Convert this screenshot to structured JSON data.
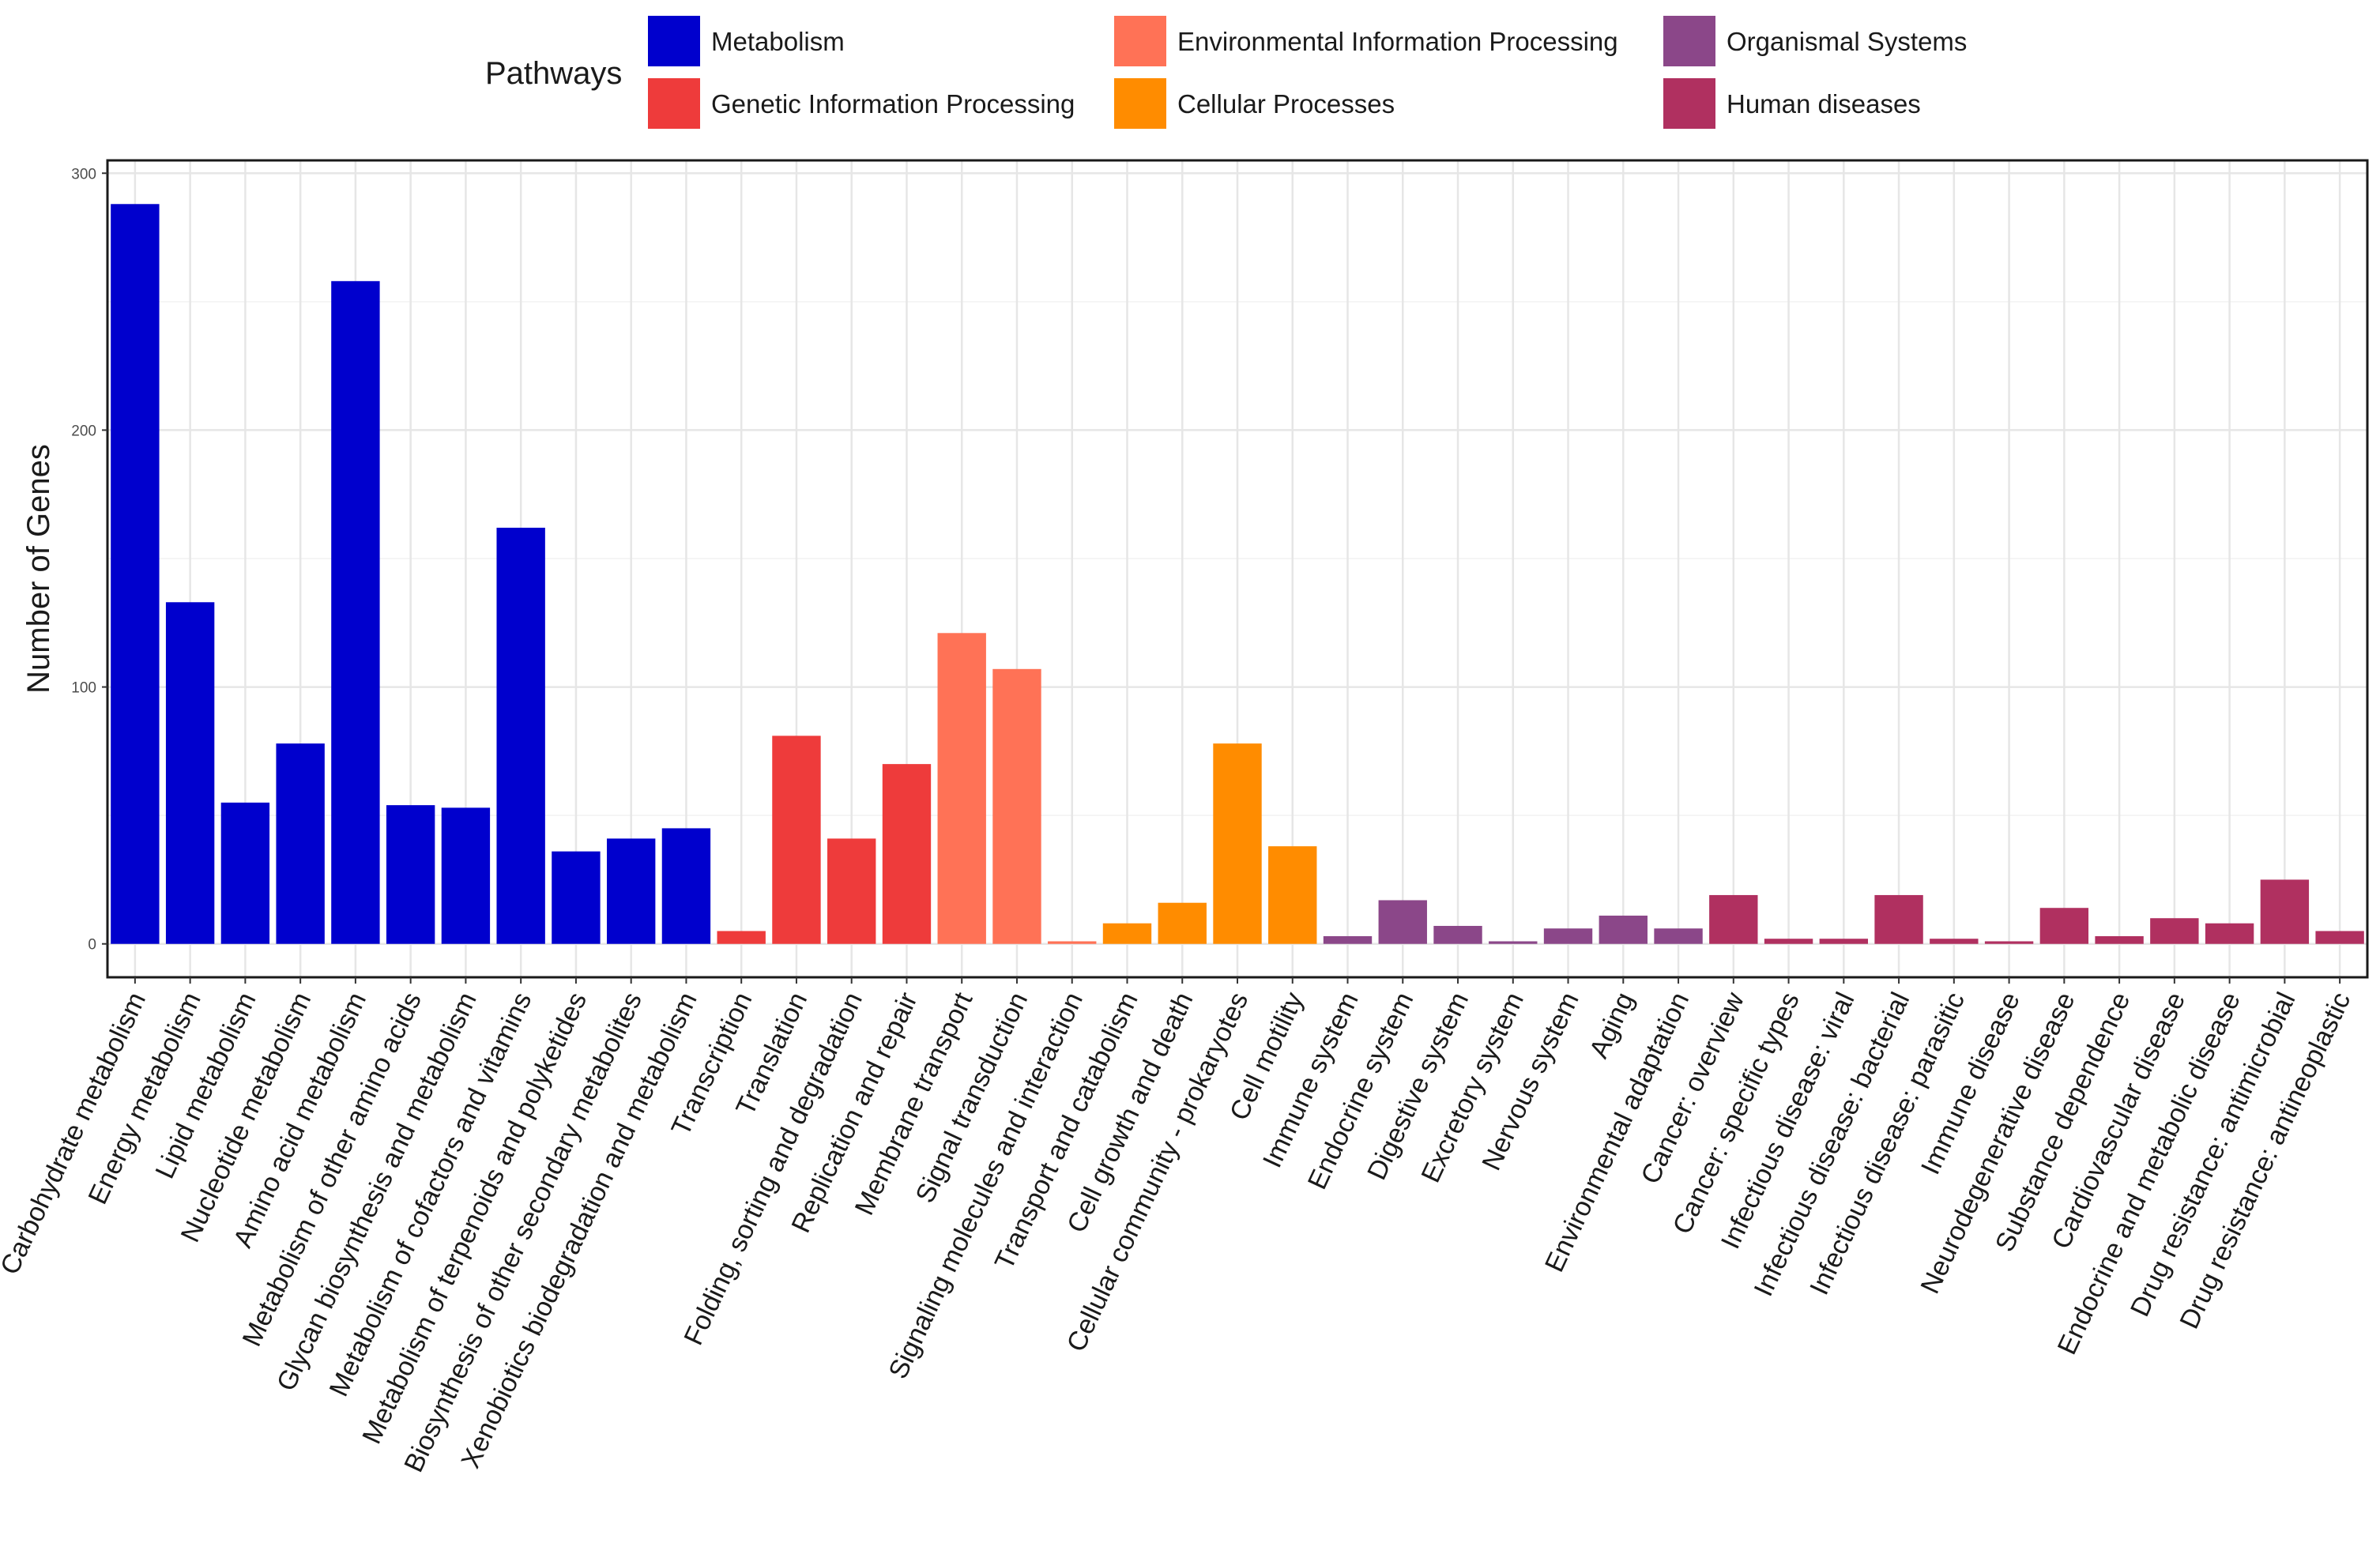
{
  "chart_data": {
    "type": "bar",
    "title": "",
    "xlabel": "",
    "ylabel": "Number of Genes",
    "ylim": [
      -13,
      305
    ],
    "yticks": [
      0,
      100,
      200,
      300
    ],
    "grid": true,
    "legend": {
      "title": "Pathways",
      "placement": "top",
      "entries": [
        {
          "name": "Metabolism",
          "color": "#0000CD"
        },
        {
          "name": "Genetic Information Processing",
          "color": "#EE3B3B"
        },
        {
          "name": "Environmental Information Processing",
          "color": "#FF7256"
        },
        {
          "name": "Cellular Processes",
          "color": "#FF8C00"
        },
        {
          "name": "Organismal Systems",
          "color": "#8B4789"
        },
        {
          "name": "Human diseases",
          "color": "#B03060"
        }
      ]
    },
    "categories": [
      "Carbohydrate metabolism",
      "Energy metabolism",
      "Lipid metabolism",
      "Nucleotide metabolism",
      "Amino acid metabolism",
      "Metabolism of other amino acids",
      "Glycan biosynthesis and metabolism",
      "Metabolism of cofactors and vitamins",
      "Metabolism of terpenoids and polyketides",
      "Biosynthesis of other secondary metabolites",
      "Xenobiotics biodegradation and metabolism",
      "Transcription",
      "Translation",
      "Folding, sorting and degradation",
      "Replication and repair",
      "Membrane transport",
      "Signal transduction",
      "Signaling molecules and interaction",
      "Transport and catabolism",
      "Cell growth and death",
      "Cellular community - prokaryotes",
      "Cell motility",
      "Immune system",
      "Endocrine system",
      "Digestive system",
      "Excretory system",
      "Nervous system",
      "Aging",
      "Environmental adaptation",
      "Cancer: overview",
      "Cancer: specific types",
      "Infectious disease: viral",
      "Infectious disease: bacterial",
      "Infectious disease: parasitic",
      "Immune disease",
      "Neurodegenerative disease",
      "Substance dependence",
      "Cardiovascular disease",
      "Endocrine and metabolic disease",
      "Drug resistance: antimicrobial",
      "Drug resistance: antineoplastic"
    ],
    "values": [
      288,
      133,
      55,
      78,
      258,
      54,
      53,
      162,
      36,
      41,
      45,
      5,
      81,
      41,
      70,
      121,
      107,
      1,
      8,
      16,
      78,
      38,
      3,
      17,
      7,
      1,
      6,
      11,
      6,
      19,
      2,
      2,
      19,
      2,
      1,
      14,
      3,
      10,
      8,
      25,
      5
    ],
    "pathway": [
      "Metabolism",
      "Metabolism",
      "Metabolism",
      "Metabolism",
      "Metabolism",
      "Metabolism",
      "Metabolism",
      "Metabolism",
      "Metabolism",
      "Metabolism",
      "Metabolism",
      "Genetic Information Processing",
      "Genetic Information Processing",
      "Genetic Information Processing",
      "Genetic Information Processing",
      "Environmental Information Processing",
      "Environmental Information Processing",
      "Environmental Information Processing",
      "Cellular Processes",
      "Cellular Processes",
      "Cellular Processes",
      "Cellular Processes",
      "Organismal Systems",
      "Organismal Systems",
      "Organismal Systems",
      "Organismal Systems",
      "Organismal Systems",
      "Organismal Systems",
      "Organismal Systems",
      "Human diseases",
      "Human diseases",
      "Human diseases",
      "Human diseases",
      "Human diseases",
      "Human diseases",
      "Human diseases",
      "Human diseases",
      "Human diseases",
      "Human diseases",
      "Human diseases",
      "Human diseases"
    ]
  }
}
